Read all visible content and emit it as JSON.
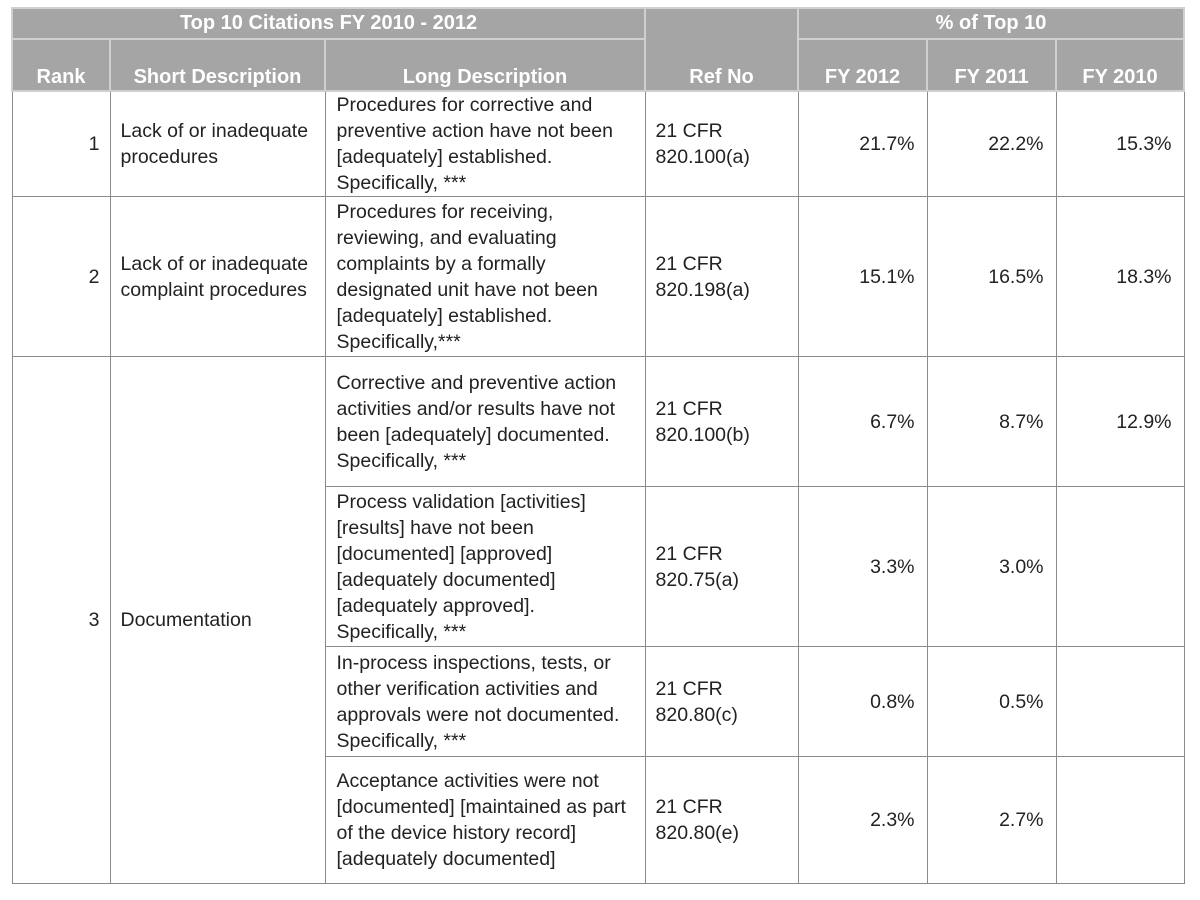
{
  "header": {
    "title": "Top 10 Citations FY 2010 - 2012",
    "group": "% of Top 10",
    "columns": [
      "Rank",
      "Short Description",
      "Long Description",
      "Ref No",
      "FY 2012",
      "FY 2011",
      "FY 2010"
    ]
  },
  "rows": [
    {
      "rank": "1",
      "short_description": "Lack of or inadequate procedures",
      "citations": [
        {
          "long_description": "Procedures for corrective and preventive action have not been [adequately] established. Specifically, ***",
          "ref_no": "21 CFR 820.100(a)",
          "values": [
            "21.7%",
            "22.2%",
            "15.3%"
          ]
        }
      ]
    },
    {
      "rank": "2",
      "short_description": "Lack of or inadequate complaint procedures",
      "citations": [
        {
          "long_description": "Procedures for receiving, reviewing, and evaluating complaints by a formally designated unit have not been [adequately] established.  Specifically,***",
          "ref_no": "21 CFR 820.198(a)",
          "values": [
            "15.1%",
            "16.5%",
            "18.3%"
          ]
        }
      ]
    },
    {
      "rank": "3",
      "short_description": "Documentation",
      "citations": [
        {
          "long_description": "Corrective and preventive action activities and/or results have not been [adequately] documented. Specifically, ***",
          "ref_no": "21 CFR 820.100(b)",
          "values": [
            "6.7%",
            "8.7%",
            "12.9%"
          ]
        },
        {
          "long_description": "Process validation [activities] [results] have not been [documented] [approved] [adequately documented] [adequately approved]. Specifically, ***",
          "ref_no": "21 CFR 820.75(a)",
          "values": [
            "3.3%",
            "3.0%"
          ]
        },
        {
          "long_description": "In-process inspections, tests, or other verification activities and approvals were not documented. Specifically, ***",
          "ref_no": "21 CFR 820.80(c)",
          "values": [
            "0.8%",
            "0.5%"
          ]
        },
        {
          "long_description": "Acceptance activities were not [documented] [maintained as part of the device history record] [adequately documented]",
          "ref_no": "21 CFR 820.80(e)",
          "values": [
            "2.3%",
            "2.7%"
          ]
        }
      ]
    }
  ]
}
